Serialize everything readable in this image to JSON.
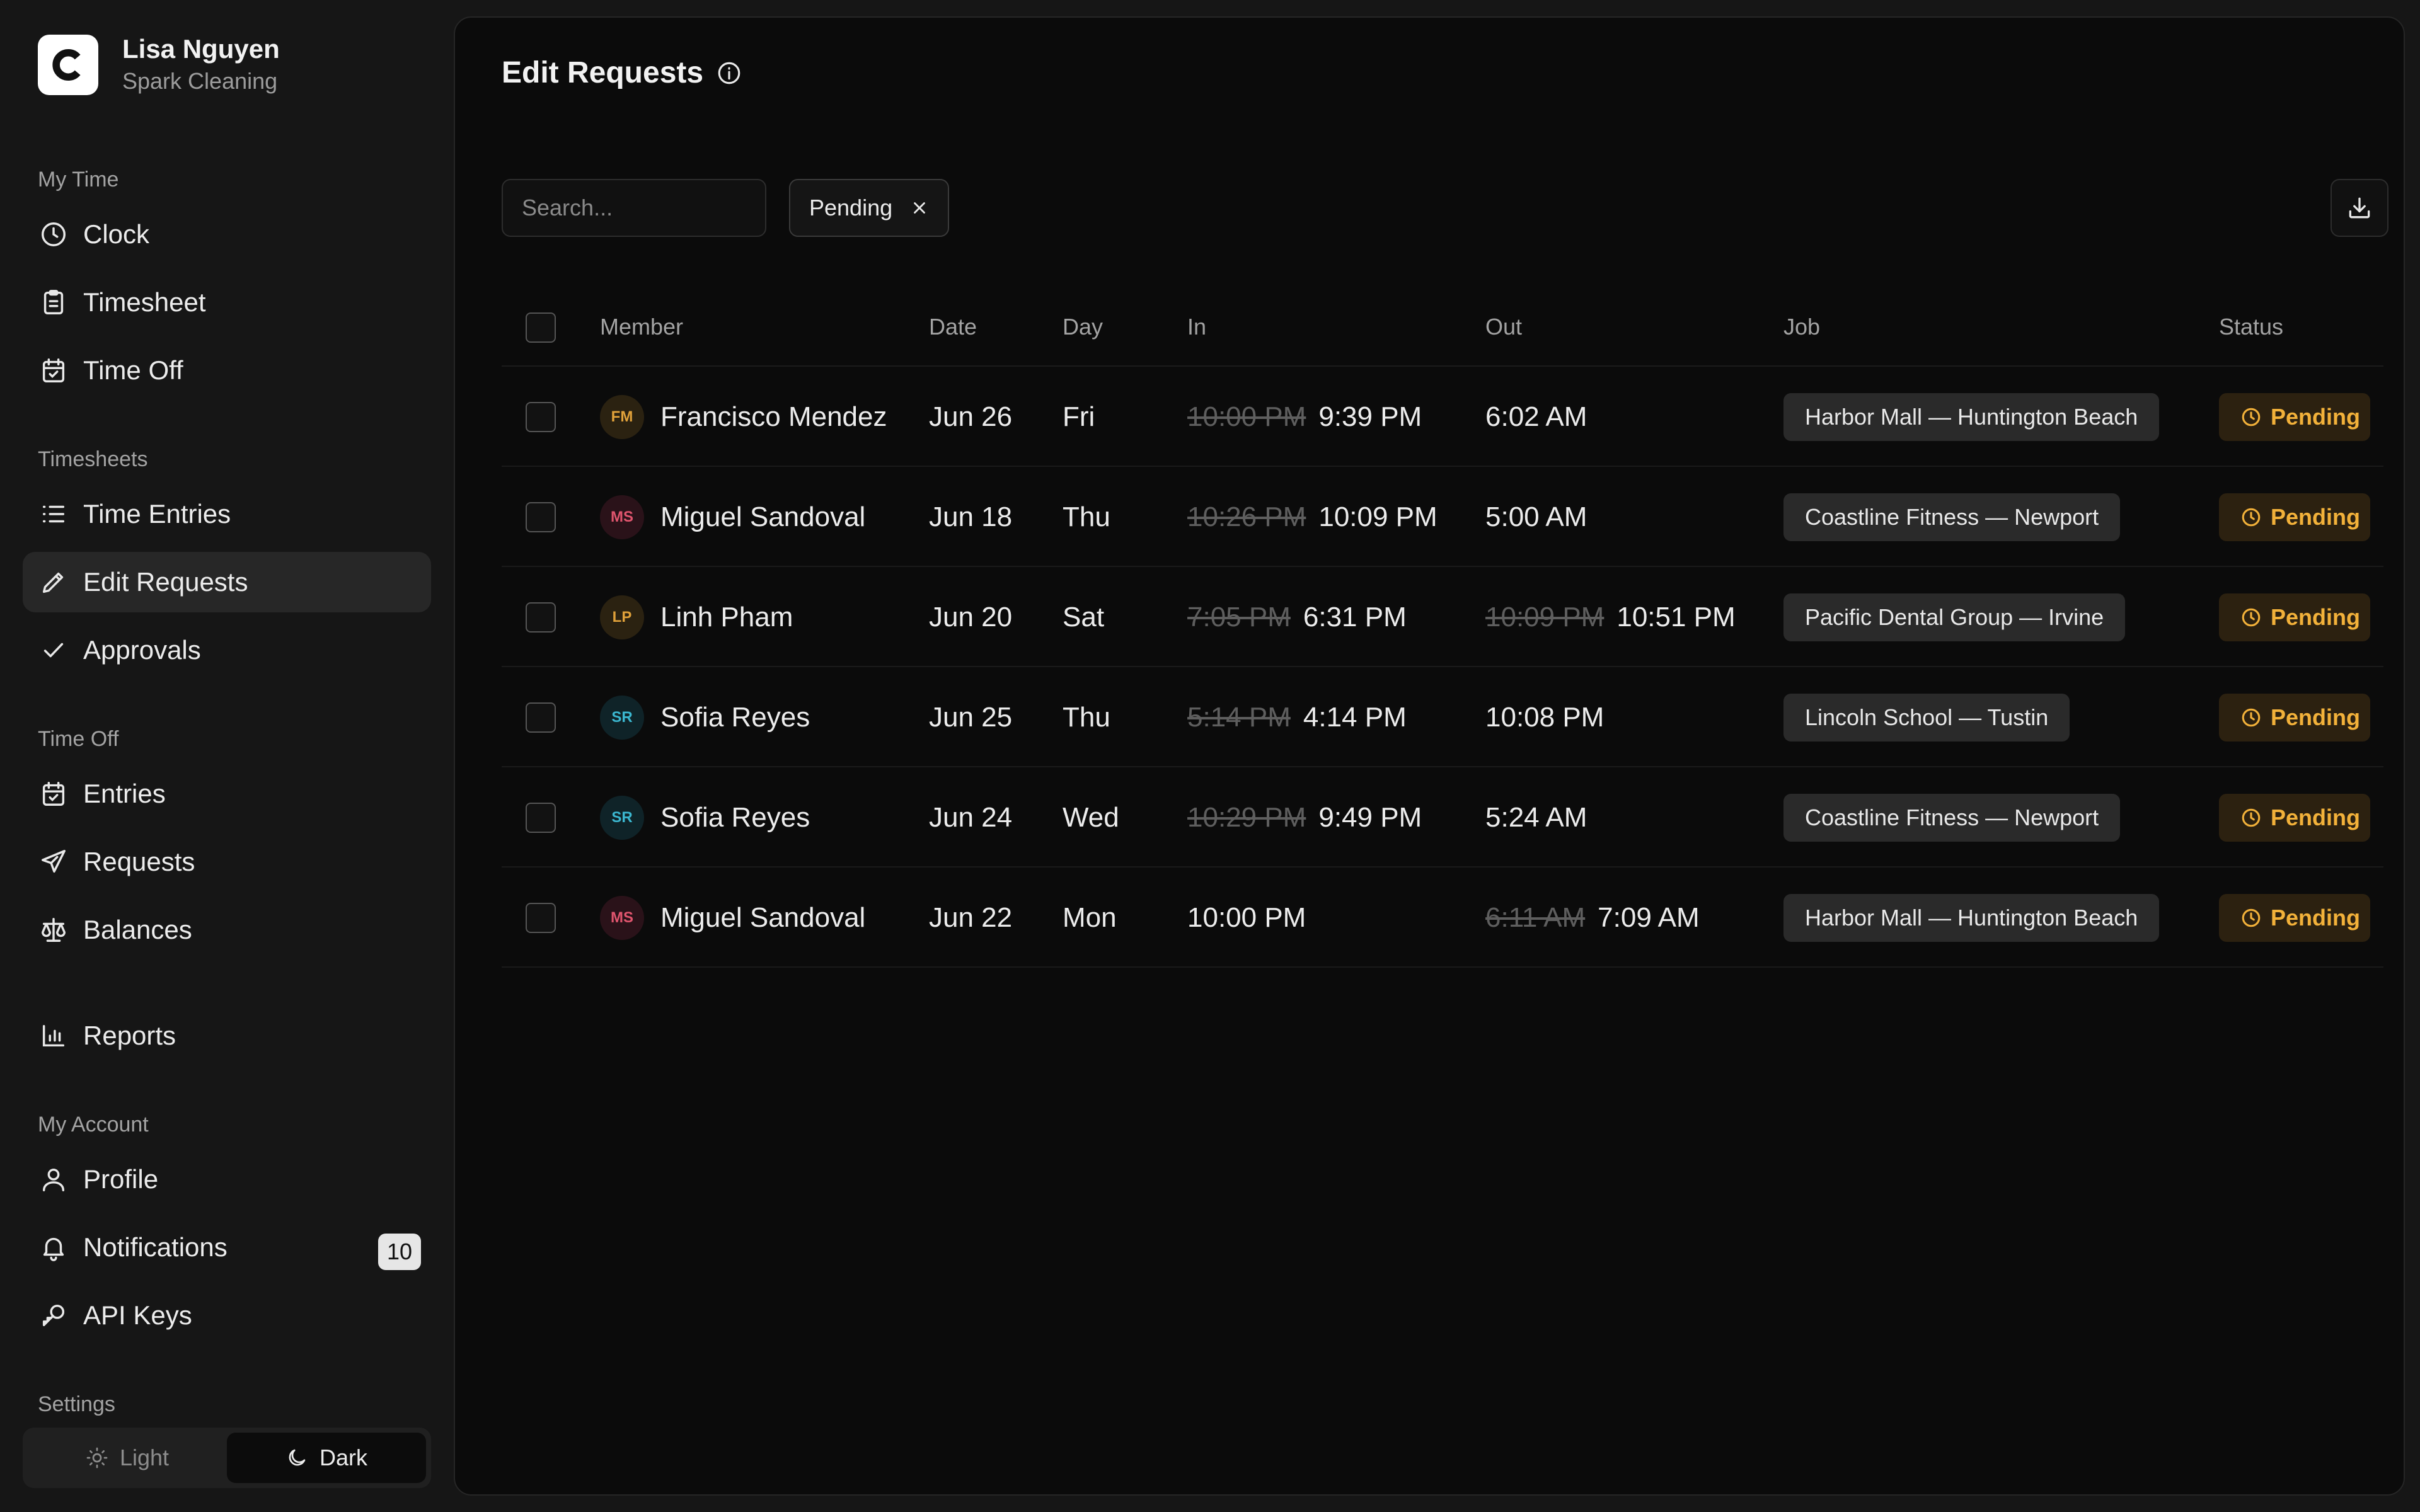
{
  "user": {
    "name": "Lisa Nguyen",
    "company": "Spark Cleaning",
    "logo_letter": "C"
  },
  "sidebar": {
    "sections": [
      {
        "title": "My Time"
      },
      {
        "title": "Timesheets"
      },
      {
        "title": "Time Off"
      },
      {
        "title": "My Account"
      },
      {
        "title": "Settings"
      }
    ],
    "items": [
      {
        "label": "Clock",
        "icon": "clock-icon"
      },
      {
        "label": "Timesheet",
        "icon": "clipboard-icon"
      },
      {
        "label": "Time Off",
        "icon": "calendar-check-icon"
      },
      {
        "label": "Time Entries",
        "icon": "list-icon"
      },
      {
        "label": "Edit Requests",
        "icon": "pencil-icon",
        "active": true
      },
      {
        "label": "Approvals",
        "icon": "check-icon"
      },
      {
        "label": "Entries",
        "icon": "calendar-check-icon"
      },
      {
        "label": "Requests",
        "icon": "send-icon"
      },
      {
        "label": "Balances",
        "icon": "scale-icon"
      },
      {
        "label": "Reports",
        "icon": "bar-chart-icon"
      },
      {
        "label": "Profile",
        "icon": "user-icon"
      },
      {
        "label": "Notifications",
        "icon": "bell-icon",
        "badge": "10"
      },
      {
        "label": "API Keys",
        "icon": "key-icon"
      }
    ],
    "theme": {
      "light_label": "Light",
      "dark_label": "Dark",
      "selected": "Dark"
    }
  },
  "main": {
    "title": "Edit Requests",
    "search_placeholder": "Search...",
    "filter_chip": "Pending",
    "columns": {
      "member": "Member",
      "date": "Date",
      "day": "Day",
      "in": "In",
      "out": "Out",
      "job": "Job",
      "status": "Status"
    },
    "rows": [
      {
        "initials": "FM",
        "avatar_color": "#e0a13a",
        "avatar_bg": "#2b2211",
        "member": "Francisco Mendez",
        "date": "Jun 26",
        "day": "Fri",
        "in_old": "10:00 PM",
        "in_new": "9:39 PM",
        "out_old": "",
        "out_new": "6:02 AM",
        "job": "Harbor Mall — Huntington Beach",
        "status": "Pending"
      },
      {
        "initials": "MS",
        "avatar_color": "#e0556e",
        "avatar_bg": "#2a1219",
        "member": "Miguel Sandoval",
        "date": "Jun 18",
        "day": "Thu",
        "in_old": "10:26 PM",
        "in_new": "10:09 PM",
        "out_old": "",
        "out_new": "5:00 AM",
        "job": "Coastline Fitness — Newport",
        "status": "Pending"
      },
      {
        "initials": "LP",
        "avatar_color": "#e0a13a",
        "avatar_bg": "#2b2211",
        "member": "Linh Pham",
        "date": "Jun 20",
        "day": "Sat",
        "in_old": "7:05 PM",
        "in_new": "6:31 PM",
        "out_old": "10:09 PM",
        "out_new": "10:51 PM",
        "job": "Pacific Dental Group — Irvine",
        "status": "Pending"
      },
      {
        "initials": "SR",
        "avatar_color": "#3bb6cf",
        "avatar_bg": "#0f2328",
        "member": "Sofia Reyes",
        "date": "Jun 25",
        "day": "Thu",
        "in_old": "5:14 PM",
        "in_new": "4:14 PM",
        "out_old": "",
        "out_new": "10:08 PM",
        "job": "Lincoln School — Tustin",
        "status": "Pending"
      },
      {
        "initials": "SR",
        "avatar_color": "#3bb6cf",
        "avatar_bg": "#0f2328",
        "member": "Sofia Reyes",
        "date": "Jun 24",
        "day": "Wed",
        "in_old": "10:29 PM",
        "in_new": "9:49 PM",
        "out_old": "",
        "out_new": "5:24 AM",
        "job": "Coastline Fitness — Newport",
        "status": "Pending"
      },
      {
        "initials": "MS",
        "avatar_color": "#e0556e",
        "avatar_bg": "#2a1219",
        "member": "Miguel Sandoval",
        "date": "Jun 22",
        "day": "Mon",
        "in_old": "",
        "in_new": "10:00 PM",
        "out_old": "6:11 AM",
        "out_new": "7:09 AM",
        "job": "Harbor Mall — Huntington Beach",
        "status": "Pending"
      }
    ]
  }
}
